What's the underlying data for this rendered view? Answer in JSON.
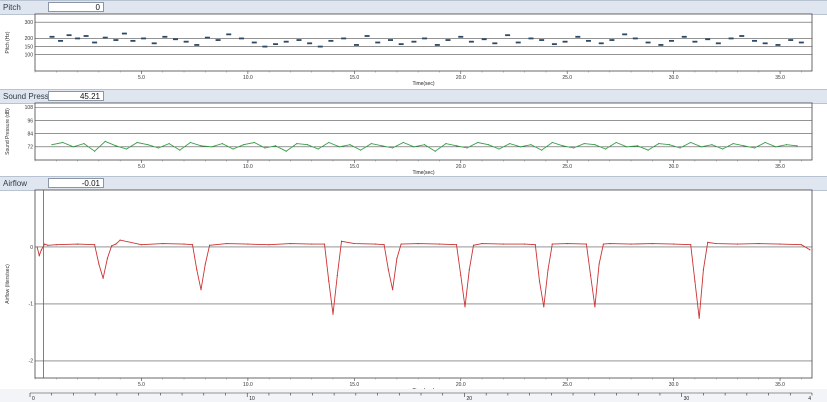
{
  "panels": {
    "pitch": {
      "title": "Pitch",
      "value": "0"
    },
    "sound_pressure": {
      "title": "Sound Pressure",
      "value": "45.21"
    },
    "airflow": {
      "title": "Airflow",
      "value": "-0.01"
    }
  },
  "ruler": {
    "labels": [
      "0",
      "10",
      "20",
      "30"
    ],
    "end_label": "4"
  },
  "colors": {
    "pitch": "#2c4a66",
    "sound_pressure": "#3aa04a",
    "airflow": "#cc3333",
    "header": "#dfe6ef"
  },
  "chart_data": [
    {
      "type": "scatter",
      "title": "Pitch",
      "xlabel": "Time(sec)",
      "ylabel": "Pitch (Hz)",
      "xlim": [
        0,
        36.5
      ],
      "ylim": [
        0,
        350
      ],
      "xticks": [
        "5.0",
        "10.0",
        "15.0",
        "20.0",
        "25.0",
        "30.0",
        "35.0"
      ],
      "xtick_values": [
        5,
        10,
        15,
        20,
        25,
        30,
        35
      ],
      "yticks": [
        "300",
        "200",
        "150",
        "100"
      ],
      "ytick_values": [
        300,
        200,
        150,
        100
      ],
      "series": [
        {
          "x": [
            0.8,
            1.2,
            1.6,
            2.0,
            2.4,
            2.8,
            3.3,
            3.8,
            4.2,
            4.6,
            5.1,
            5.6,
            6.1,
            6.6,
            7.1,
            7.6,
            8.1,
            8.6,
            9.1,
            9.7,
            10.3,
            10.8,
            11.3,
            11.8,
            12.4,
            12.9,
            13.4,
            13.9,
            14.5,
            15.1,
            15.6,
            16.1,
            16.7,
            17.2,
            17.8,
            18.3,
            18.9,
            19.4,
            20.0,
            20.5,
            21.1,
            21.6,
            22.2,
            22.7,
            23.3,
            23.8,
            24.4,
            24.9,
            25.5,
            26.0,
            26.6,
            27.1,
            27.7,
            28.2,
            28.8,
            29.4,
            29.9,
            30.5,
            31.0,
            31.6,
            32.1,
            32.7,
            33.2,
            33.8,
            34.3,
            34.9,
            35.5,
            36.0
          ],
          "y": [
            210,
            185,
            220,
            200,
            215,
            175,
            205,
            190,
            230,
            185,
            200,
            170,
            210,
            195,
            180,
            160,
            205,
            190,
            225,
            200,
            175,
            150,
            165,
            180,
            190,
            170,
            150,
            185,
            200,
            160,
            215,
            175,
            190,
            165,
            180,
            200,
            160,
            190,
            210,
            180,
            195,
            170,
            220,
            175,
            200,
            190,
            165,
            180,
            210,
            185,
            170,
            190,
            225,
            200,
            175,
            160,
            185,
            210,
            180,
            195,
            170,
            200,
            215,
            185,
            170,
            160,
            190,
            175
          ]
        }
      ]
    },
    {
      "type": "line",
      "title": "Sound Pressure",
      "xlabel": "Time(sec)",
      "ylabel": "Sound Pressure (dB)",
      "xlim": [
        0,
        36.5
      ],
      "ylim": [
        60,
        112
      ],
      "xticks": [
        "5.0",
        "10.0",
        "15.0",
        "20.0",
        "25.0",
        "30.0",
        "35.0"
      ],
      "xtick_values": [
        5,
        10,
        15,
        20,
        25,
        30,
        35
      ],
      "yticks": [
        "108",
        "96",
        "84",
        "72"
      ],
      "ytick_values": [
        108,
        96,
        84,
        72
      ],
      "series": [
        {
          "x": [
            0.8,
            1.3,
            1.8,
            2.3,
            2.8,
            3.3,
            3.8,
            4.3,
            4.8,
            5.3,
            5.8,
            6.3,
            6.8,
            7.3,
            7.8,
            8.3,
            8.8,
            9.3,
            9.8,
            10.3,
            10.8,
            11.3,
            11.8,
            12.3,
            12.8,
            13.3,
            13.8,
            14.3,
            14.8,
            15.3,
            15.8,
            16.3,
            16.8,
            17.3,
            17.8,
            18.3,
            18.8,
            19.3,
            19.8,
            20.3,
            20.8,
            21.3,
            21.8,
            22.3,
            22.8,
            23.3,
            23.8,
            24.3,
            24.8,
            25.3,
            25.8,
            26.3,
            26.8,
            27.3,
            27.8,
            28.3,
            28.8,
            29.3,
            29.8,
            30.3,
            30.8,
            31.3,
            31.8,
            32.3,
            32.8,
            33.3,
            33.8,
            34.3,
            34.8,
            35.3,
            35.8
          ],
          "y": [
            74,
            76,
            72,
            75,
            68,
            77,
            73,
            70,
            76,
            74,
            71,
            75,
            69,
            76,
            73,
            72,
            75,
            70,
            74,
            76,
            71,
            73,
            68,
            75,
            74,
            70,
            76,
            72,
            74,
            69,
            75,
            73,
            71,
            76,
            72,
            74,
            68,
            75,
            73,
            71,
            76,
            74,
            70,
            75,
            72,
            74,
            69,
            76,
            73,
            71,
            75,
            74,
            70,
            76,
            72,
            73,
            69,
            75,
            74,
            71,
            76,
            72,
            74,
            70,
            75,
            73,
            71,
            76,
            72,
            74,
            73
          ]
        }
      ]
    },
    {
      "type": "line",
      "title": "Airflow",
      "xlabel": "Time(sec)",
      "ylabel": "Airflow (liters/sec)",
      "xlim": [
        0,
        36.5
      ],
      "ylim": [
        -2.3,
        1.0
      ],
      "xticks": [
        "5.0",
        "10.0",
        "15.0",
        "20.0",
        "25.0",
        "30.0",
        "35.0"
      ],
      "xtick_values": [
        5,
        10,
        15,
        20,
        25,
        30,
        35
      ],
      "yticks": [
        "0",
        "-1",
        "-2"
      ],
      "ytick_values": [
        0,
        -1,
        -2
      ],
      "series": [
        {
          "x": [
            0.1,
            0.2,
            0.3,
            0.45,
            0.6,
            1.0,
            2.0,
            2.8,
            3.0,
            3.2,
            3.4,
            3.6,
            3.8,
            4.0,
            5.0,
            6.0,
            7.0,
            7.4,
            7.6,
            7.8,
            8.0,
            8.2,
            9.0,
            10.0,
            11.0,
            12.0,
            13.0,
            13.6,
            13.8,
            14.0,
            14.2,
            14.4,
            15.0,
            16.0,
            16.4,
            16.6,
            16.8,
            17.0,
            17.2,
            18.0,
            19.0,
            19.8,
            20.0,
            20.2,
            20.4,
            20.6,
            21.0,
            22.0,
            23.0,
            23.5,
            23.7,
            23.9,
            24.1,
            24.3,
            25.0,
            25.9,
            26.1,
            26.3,
            26.5,
            26.7,
            27.0,
            28.0,
            29.0,
            30.0,
            30.8,
            31.0,
            31.2,
            31.4,
            31.6,
            32.0,
            33.0,
            34.0,
            35.0,
            36.0,
            36.4
          ],
          "y": [
            0.0,
            -0.15,
            -0.05,
            0.05,
            0.03,
            0.04,
            0.05,
            0.04,
            -0.3,
            -0.55,
            -0.2,
            0.02,
            0.05,
            0.12,
            0.04,
            0.06,
            0.05,
            0.04,
            -0.4,
            -0.75,
            -0.3,
            0.03,
            0.06,
            0.05,
            0.04,
            0.06,
            0.05,
            0.05,
            -0.6,
            -1.18,
            -0.5,
            0.1,
            0.06,
            0.05,
            0.04,
            -0.4,
            -0.75,
            -0.2,
            0.05,
            0.06,
            0.05,
            0.04,
            -0.5,
            -1.05,
            -0.4,
            0.03,
            0.06,
            0.05,
            0.05,
            0.04,
            -0.6,
            -1.05,
            -0.4,
            0.05,
            0.06,
            0.05,
            -0.5,
            -1.05,
            -0.3,
            0.05,
            0.06,
            0.05,
            0.06,
            0.05,
            0.04,
            -0.6,
            -1.25,
            -0.4,
            0.08,
            0.06,
            0.05,
            0.06,
            0.05,
            0.04,
            -0.05
          ]
        }
      ]
    }
  ]
}
